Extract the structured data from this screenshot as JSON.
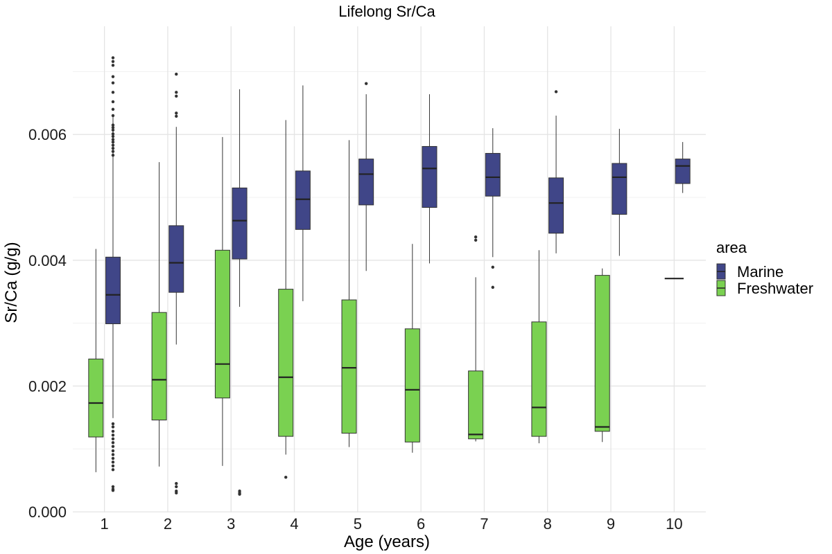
{
  "chart_data": {
    "type": "boxplot",
    "title": "Lifelong Sr/Ca",
    "xlabel": "Age (years)",
    "ylabel": "Sr/Ca (g/g)",
    "categories": [
      "1",
      "2",
      "3",
      "4",
      "5",
      "6",
      "7",
      "8",
      "9",
      "10"
    ],
    "ylim": [
      -1e-05,
      0.00772
    ],
    "y_ticks": [
      0.0,
      0.002,
      0.004,
      0.006
    ],
    "y_tick_labels": [
      "0.000",
      "0.002",
      "0.004",
      "0.006"
    ],
    "grid": true,
    "legend": {
      "title": "area",
      "position": "right"
    },
    "series": [
      {
        "name": "Freshwater",
        "color": "#7ad151",
        "boxes": [
          {
            "category": "1",
            "lower": 0.00063,
            "q1": 0.00119,
            "median": 0.00173,
            "q3": 0.00243,
            "upper": 0.00418,
            "outliers": []
          },
          {
            "category": "2",
            "lower": 0.00072,
            "q1": 0.00146,
            "median": 0.0021,
            "q3": 0.00317,
            "upper": 0.00556,
            "outliers": []
          },
          {
            "category": "3",
            "lower": 0.00073,
            "q1": 0.00181,
            "median": 0.00235,
            "q3": 0.00416,
            "upper": 0.00596,
            "outliers": []
          },
          {
            "category": "4",
            "lower": 0.00091,
            "q1": 0.0012,
            "median": 0.00214,
            "q3": 0.00354,
            "upper": 0.00623,
            "outliers": [
              0.00055
            ]
          },
          {
            "category": "5",
            "lower": 0.00103,
            "q1": 0.00125,
            "median": 0.00229,
            "q3": 0.00337,
            "upper": 0.00591,
            "outliers": []
          },
          {
            "category": "6",
            "lower": 0.00094,
            "q1": 0.00111,
            "median": 0.00194,
            "q3": 0.00291,
            "upper": 0.00426,
            "outliers": []
          },
          {
            "category": "7",
            "lower": 0.00112,
            "q1": 0.00116,
            "median": 0.00123,
            "q3": 0.00224,
            "upper": 0.00373,
            "outliers": [
              0.00432,
              0.00437
            ]
          },
          {
            "category": "8",
            "lower": 0.00109,
            "q1": 0.0012,
            "median": 0.00166,
            "q3": 0.00302,
            "upper": 0.00416,
            "outliers": []
          },
          {
            "category": "9",
            "lower": 0.00111,
            "q1": 0.00128,
            "median": 0.00135,
            "q3": 0.00376,
            "upper": 0.00387,
            "outliers": []
          }
        ]
      },
      {
        "name": "Marine",
        "color": "#404688",
        "boxes": [
          {
            "category": "1",
            "lower": 0.00149,
            "q1": 0.00299,
            "median": 0.00345,
            "q3": 0.00405,
            "upper": 0.0063,
            "outliers": [
              0.00722,
              0.00716,
              0.0071,
              0.00692,
              0.00682,
              0.00667,
              0.00652,
              0.0064,
              0.0063,
              0.00615,
              0.00611,
              0.00607,
              0.00601,
              0.00597,
              0.00592,
              0.00588,
              0.00583,
              0.00578,
              0.00573,
              0.00567,
              0.0014,
              0.00135,
              0.00128,
              0.00122,
              0.00116,
              0.0011,
              0.00104,
              0.00097,
              0.00091,
              0.00085,
              0.00079,
              0.00073,
              0.00067,
              0.0004,
              0.00036,
              0.00034
            ]
          },
          {
            "category": "2",
            "lower": 0.00266,
            "q1": 0.00349,
            "median": 0.00396,
            "q3": 0.00455,
            "upper": 0.00612,
            "outliers": [
              0.00696,
              0.00667,
              0.00661,
              0.00634,
              0.00629,
              0.00045,
              0.0004,
              0.00033,
              0.0003
            ]
          },
          {
            "category": "3",
            "lower": 0.00326,
            "q1": 0.00402,
            "median": 0.00463,
            "q3": 0.00515,
            "upper": 0.00672,
            "outliers": [
              0.00033,
              0.0003,
              0.00028
            ]
          },
          {
            "category": "4",
            "lower": 0.00335,
            "q1": 0.00449,
            "median": 0.00497,
            "q3": 0.00542,
            "upper": 0.00678,
            "outliers": []
          },
          {
            "category": "5",
            "lower": 0.00383,
            "q1": 0.00488,
            "median": 0.00537,
            "q3": 0.00561,
            "upper": 0.00664,
            "outliers": [
              0.00681
            ]
          },
          {
            "category": "6",
            "lower": 0.00395,
            "q1": 0.00484,
            "median": 0.00546,
            "q3": 0.00581,
            "upper": 0.00664,
            "outliers": []
          },
          {
            "category": "7",
            "lower": 0.00405,
            "q1": 0.00502,
            "median": 0.00532,
            "q3": 0.0057,
            "upper": 0.0061,
            "outliers": [
              0.00389,
              0.00357
            ]
          },
          {
            "category": "8",
            "lower": 0.00411,
            "q1": 0.00443,
            "median": 0.00491,
            "q3": 0.00531,
            "upper": 0.0063,
            "outliers": [
              0.00668
            ]
          },
          {
            "category": "9",
            "lower": 0.00407,
            "q1": 0.00473,
            "median": 0.00532,
            "q3": 0.00554,
            "upper": 0.00609,
            "outliers": []
          },
          {
            "category": "10",
            "lower": 0.00507,
            "q1": 0.00522,
            "median": 0.0055,
            "q3": 0.00561,
            "upper": 0.00588,
            "outliers": []
          }
        ]
      }
    ],
    "single_values": [
      {
        "category": "10",
        "series": "Freshwater",
        "value": 0.00371
      }
    ]
  },
  "legend_items": [
    {
      "label": "Marine",
      "color": "#404688"
    },
    {
      "label": "Freshwater",
      "color": "#7ad151"
    }
  ]
}
